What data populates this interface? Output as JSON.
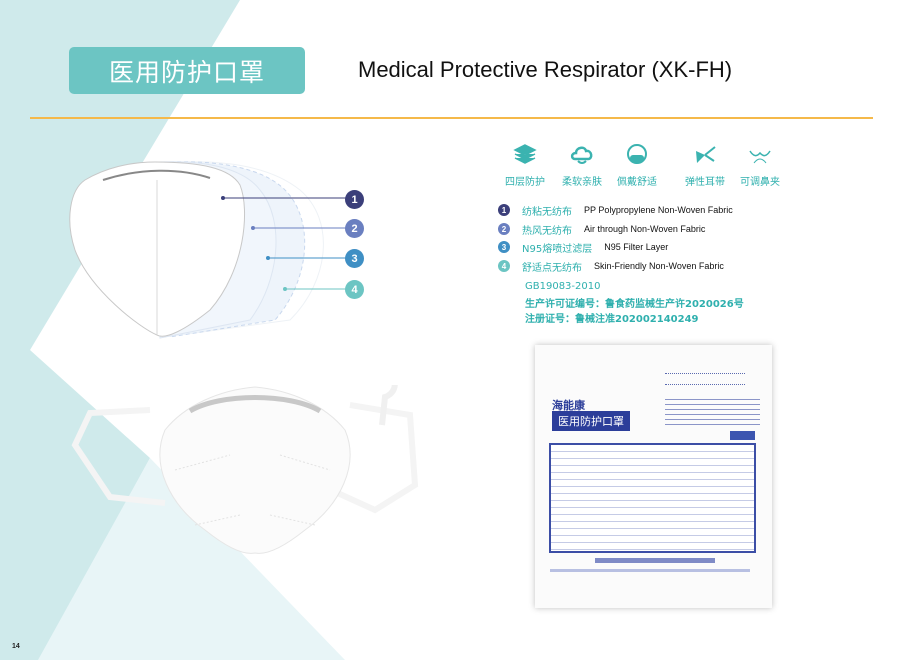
{
  "page": {
    "number": "14"
  },
  "header": {
    "title_zh": "医用防护口罩",
    "title_en": "Medical Protective Respirator (XK-FH)"
  },
  "colors": {
    "accent": "#6cc5c3",
    "rule": "#f5b94a",
    "layer1": "#3b3f7a",
    "layer2": "#6a7fc0",
    "layer3": "#3f8fc4",
    "layer4": "#6cc5c3"
  },
  "features": [
    {
      "icon": "layers-icon",
      "label": "四层防护"
    },
    {
      "icon": "cloud-hand-icon",
      "label": "柔软亲肤"
    },
    {
      "icon": "face-mask-icon",
      "label": "佩戴舒适"
    },
    {
      "icon": "elastic-ear-loop-icon",
      "label": "弹性耳带"
    },
    {
      "icon": "nose-clip-icon",
      "label": "可调鼻夹"
    }
  ],
  "layers": [
    {
      "num": "1",
      "zh": "纺粘无纺布",
      "en": "PP Polypropylene Non-Woven Fabric"
    },
    {
      "num": "2",
      "zh": "热风无纺布",
      "en": "Air through Non-Woven Fabric"
    },
    {
      "num": "3",
      "zh": "N95熔喷过滤层",
      "en": "N95 Filter Layer"
    },
    {
      "num": "4",
      "zh": "舒适点无纺布",
      "en": "Skin-Friendly Non-Woven Fabric"
    }
  ],
  "certifications": [
    "GB19083-2010",
    "生产许可证编号：鲁食药监械生产许2020026号",
    "注册证号：鲁械注准202002140249"
  ],
  "package": {
    "brand": "海能康",
    "title": "医用防护口罩"
  }
}
